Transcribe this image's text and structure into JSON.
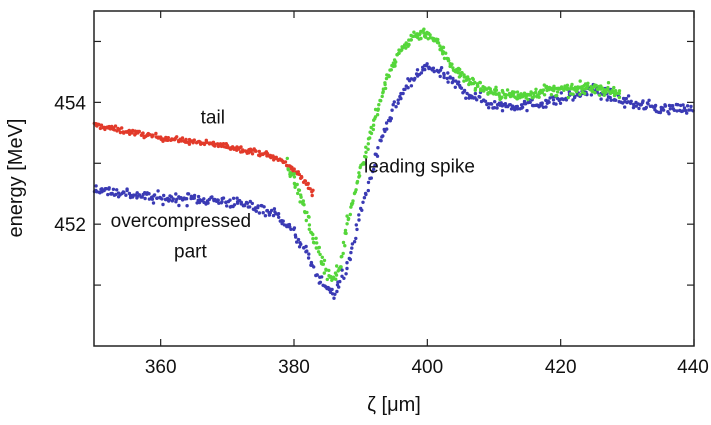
{
  "chart_data": {
    "type": "scatter",
    "xlabel": "ζ [μm]",
    "ylabel": "energy [MeV]",
    "xlim": [
      350,
      440
    ],
    "ylim": [
      450.0,
      455.5
    ],
    "grid": false,
    "legend": "none",
    "x_ticks": [
      {
        "value": 360,
        "label": "360"
      },
      {
        "value": 380,
        "label": "380"
      },
      {
        "value": 400,
        "label": "400"
      },
      {
        "value": 420,
        "label": "420"
      },
      {
        "value": 440,
        "label": "440"
      }
    ],
    "y_ticks": [
      {
        "value": 451,
        "label": ""
      },
      {
        "value": 452,
        "label": "452"
      },
      {
        "value": 453,
        "label": ""
      },
      {
        "value": 454,
        "label": "454"
      },
      {
        "value": 455,
        "label": ""
      }
    ],
    "annotations": [
      {
        "id": "tail",
        "text": "tail",
        "x": 366,
        "y": 453.65
      },
      {
        "id": "leading-spike",
        "text": "leading spike",
        "x": 390.5,
        "y": 452.85
      },
      {
        "id": "overcompressed",
        "text": "overcompressed",
        "x": 352.5,
        "y": 451.95
      },
      {
        "id": "overcompressed-2",
        "text": "part",
        "x": 362,
        "y": 451.45
      }
    ],
    "series": [
      {
        "color": "#e23a2a",
        "noise": 0.045,
        "density": 7,
        "curve": [
          [
            350,
            453.63
          ],
          [
            355,
            453.52
          ],
          [
            360,
            453.42
          ],
          [
            365,
            453.35
          ],
          [
            370,
            453.28
          ],
          [
            375,
            453.17
          ],
          [
            378,
            453.05
          ],
          [
            380,
            452.9
          ],
          [
            382,
            452.65
          ],
          [
            383,
            452.5
          ]
        ]
      },
      {
        "color": "#3a3ab4",
        "noise": 0.09,
        "density": 6,
        "curve": [
          [
            350,
            452.58
          ],
          [
            355,
            452.5
          ],
          [
            360,
            452.42
          ],
          [
            365,
            452.42
          ],
          [
            370,
            452.37
          ],
          [
            375,
            452.27
          ],
          [
            378,
            452.12
          ],
          [
            380,
            451.85
          ],
          [
            382,
            451.5
          ],
          [
            384,
            451.05
          ],
          [
            386,
            450.85
          ],
          [
            388,
            451.3
          ],
          [
            390,
            452.2
          ],
          [
            392,
            453.0
          ],
          [
            394,
            453.65
          ],
          [
            396,
            454.1
          ],
          [
            398,
            454.4
          ],
          [
            400,
            454.6
          ],
          [
            403,
            454.4
          ],
          [
            406,
            454.15
          ],
          [
            410,
            453.95
          ],
          [
            415,
            453.95
          ],
          [
            420,
            454.05
          ],
          [
            425,
            454.2
          ],
          [
            430,
            454.0
          ],
          [
            435,
            453.9
          ],
          [
            440,
            453.9
          ]
        ]
      },
      {
        "color": "#55d63a",
        "noise": 0.09,
        "density": 9,
        "curve": [
          [
            379,
            453.0
          ],
          [
            381,
            452.45
          ],
          [
            383,
            451.75
          ],
          [
            385,
            451.2
          ],
          [
            386,
            451.1
          ],
          [
            387,
            451.35
          ],
          [
            388,
            452.0
          ],
          [
            390,
            452.9
          ],
          [
            392,
            453.7
          ],
          [
            394,
            454.4
          ],
          [
            396,
            454.85
          ],
          [
            398,
            455.1
          ],
          [
            400,
            455.15
          ],
          [
            402,
            454.9
          ],
          [
            404,
            454.55
          ],
          [
            407,
            454.3
          ],
          [
            410,
            454.15
          ],
          [
            414,
            454.1
          ],
          [
            418,
            454.2
          ],
          [
            422,
            454.2
          ],
          [
            425,
            454.25
          ],
          [
            429,
            454.15
          ]
        ]
      }
    ]
  }
}
